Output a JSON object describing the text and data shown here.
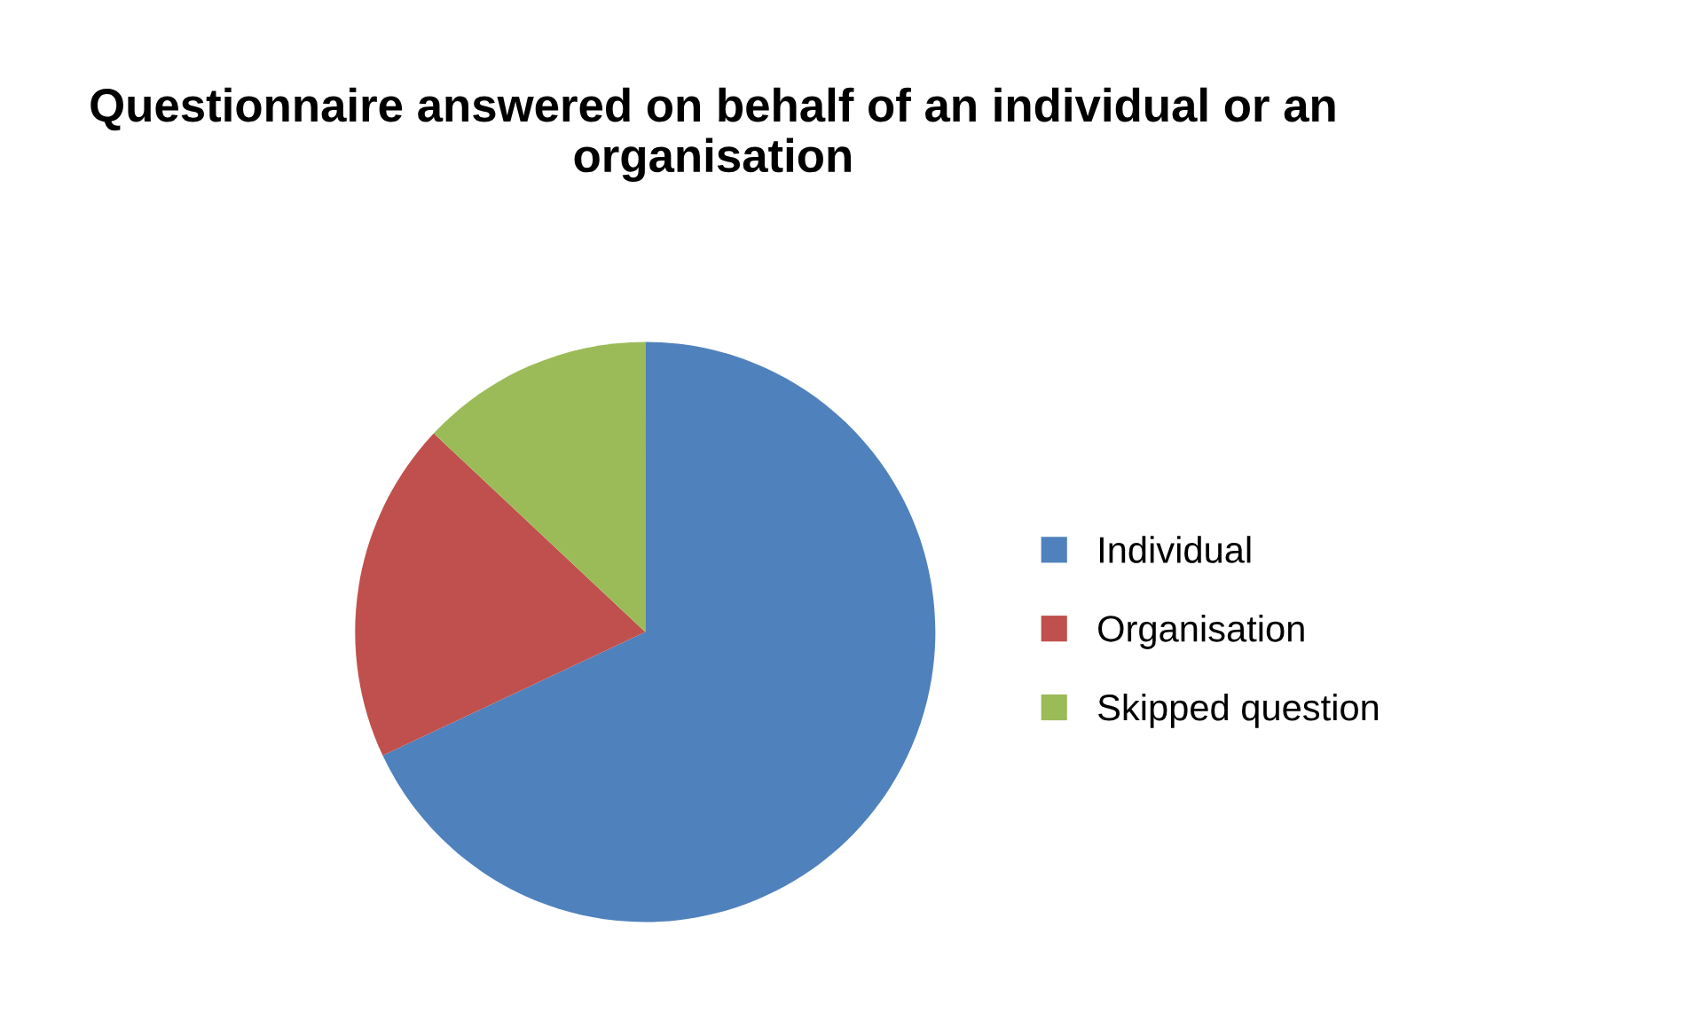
{
  "chart_data": {
    "type": "pie",
    "title": "Questionnaire answered on behalf of an individual or an organisation",
    "categories": [
      "Individual",
      "Organisation",
      "Skipped question"
    ],
    "values": [
      68,
      19,
      13
    ],
    "colors": [
      "#4f81bd",
      "#c0504d",
      "#9bbb59"
    ],
    "legend": "right"
  }
}
